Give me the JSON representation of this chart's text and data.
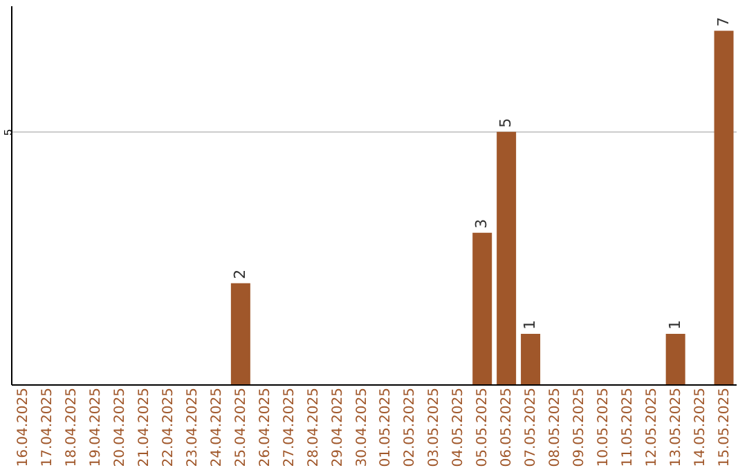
{
  "chart_data": {
    "type": "bar",
    "categories": [
      "16.04.2025",
      "17.04.2025",
      "18.04.2025",
      "19.04.2025",
      "20.04.2025",
      "21.04.2025",
      "22.04.2025",
      "23.04.2025",
      "24.04.2025",
      "25.04.2025",
      "26.04.2025",
      "27.04.2025",
      "28.04.2025",
      "29.04.2025",
      "30.04.2025",
      "01.05.2025",
      "02.05.2025",
      "03.05.2025",
      "04.05.2025",
      "05.05.2025",
      "06.05.2025",
      "07.05.2025",
      "08.05.2025",
      "09.05.2025",
      "10.05.2025",
      "11.05.2025",
      "12.05.2025",
      "13.05.2025",
      "14.05.2025",
      "15.05.2025"
    ],
    "values": [
      0,
      0,
      0,
      0,
      0,
      0,
      0,
      0,
      0,
      2,
      0,
      0,
      0,
      0,
      0,
      0,
      0,
      0,
      0,
      3,
      5,
      1,
      0,
      0,
      0,
      0,
      0,
      1,
      0,
      7
    ],
    "value_labels": [
      null,
      null,
      null,
      null,
      null,
      null,
      null,
      null,
      null,
      "2",
      null,
      null,
      null,
      null,
      null,
      null,
      null,
      null,
      null,
      "3",
      "5",
      "1",
      null,
      null,
      null,
      null,
      null,
      "1",
      null,
      "7"
    ],
    "color": "#a0572a",
    "ylim": [
      0,
      7.5
    ],
    "yticks": [
      {
        "value": 0,
        "label": null
      },
      5
    ],
    "grid": "y"
  }
}
